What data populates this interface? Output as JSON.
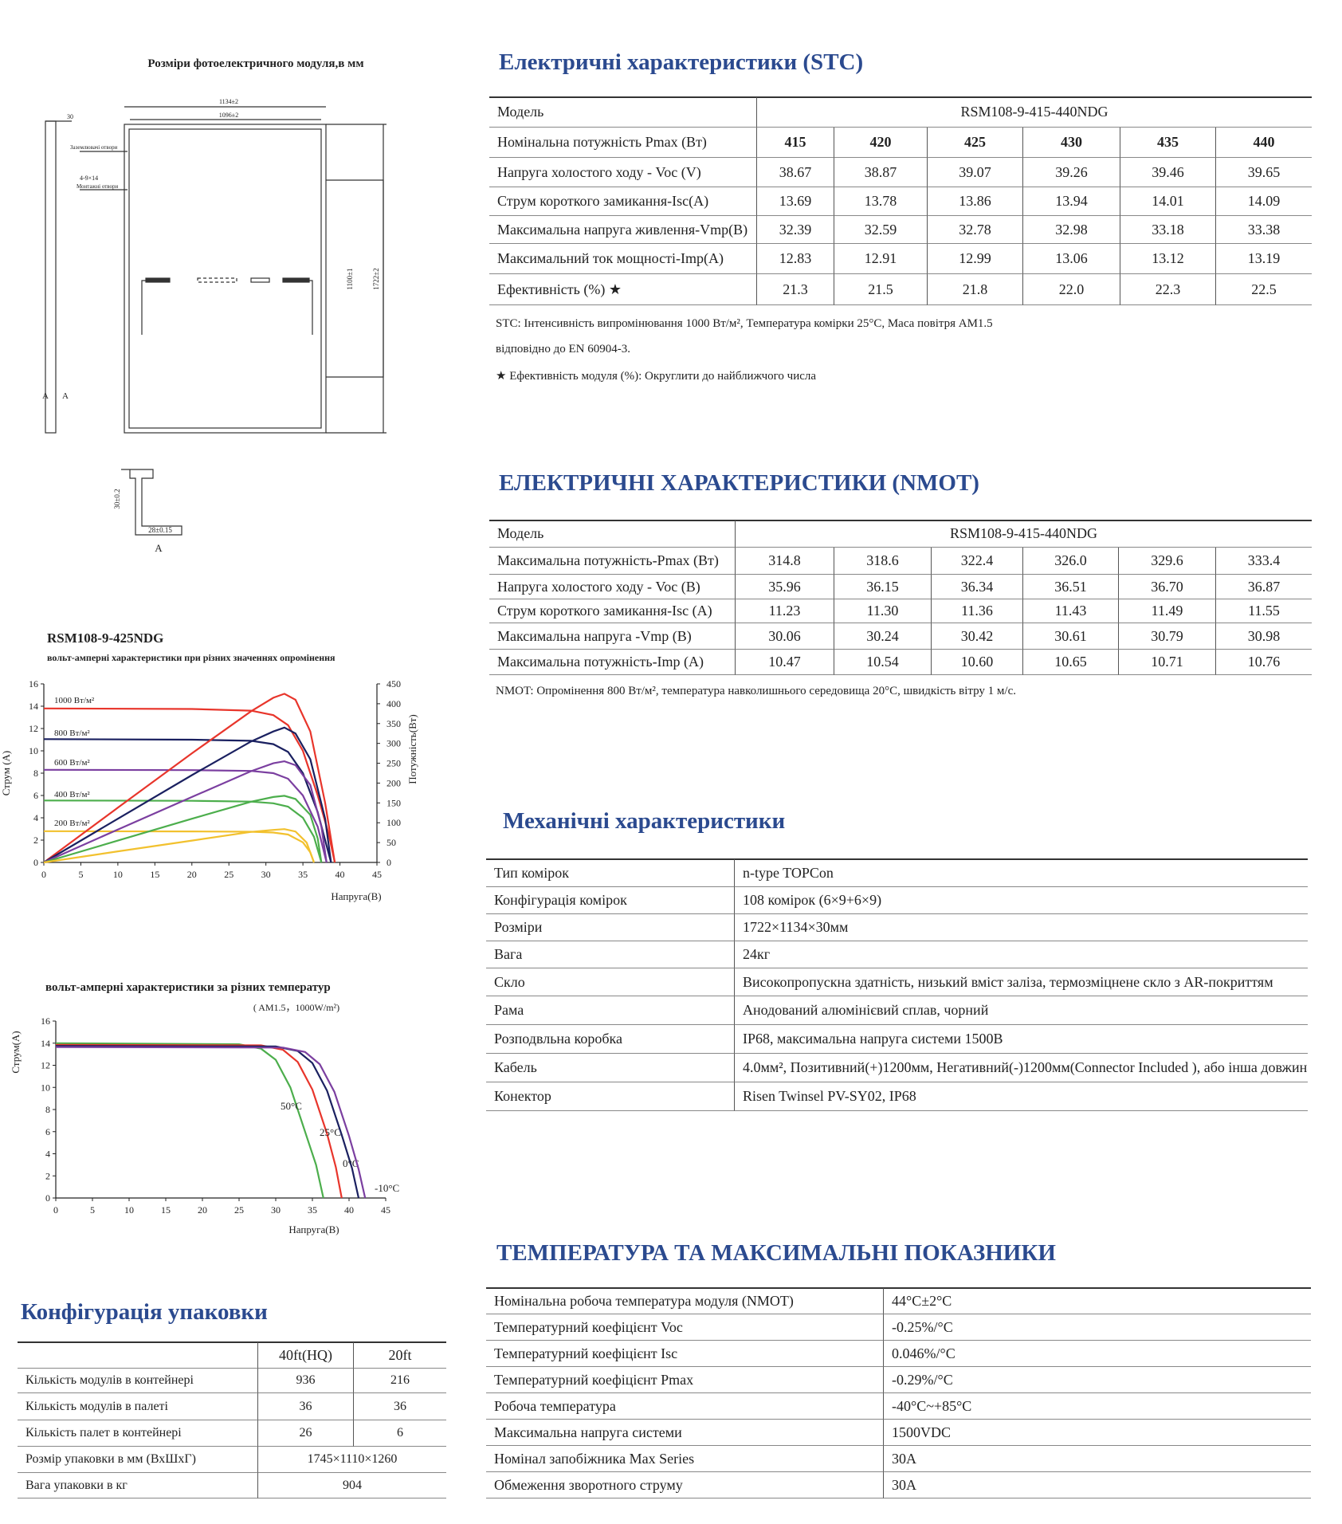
{
  "drawing": {
    "title": "Розміри фотоелектричного модуля,в мм",
    "width_outer": "1134±2",
    "width_inner": "1096±2",
    "thickness": "30",
    "ground_holes": "Заземлювачі отвори",
    "mount_size": "4-9×14",
    "mount_holes": "Монтажні отвори",
    "mount_pitch": "1100±1",
    "length": "1722±2",
    "section_left": "A",
    "section_right": "A",
    "profile_height": "30±0.2",
    "profile_width": "28±0.15",
    "profile_label": "A"
  },
  "stc": {
    "title": "Електричні характеристики  (STC)",
    "header": [
      "Модель",
      "RSM108-9-415-440NDG"
    ],
    "rows": [
      [
        "Номінальна потужність Pmax (Вт)",
        "415",
        "420",
        "425",
        "430",
        "435",
        "440"
      ],
      [
        "Напруга холостого ходу - Voc (V)",
        "38.67",
        "38.87",
        "39.07",
        "39.26",
        "39.46",
        "39.65"
      ],
      [
        "Струм короткого замикання-Isc(A)",
        "13.69",
        "13.78",
        "13.86",
        "13.94",
        "14.01",
        "14.09"
      ],
      [
        "Максимальна напруга живлення-Vmp(B)",
        "32.39",
        "32.59",
        "32.78",
        "32.98",
        "33.18",
        "33.38"
      ],
      [
        "Максимальний ток мощності-Imp(A)",
        "12.83",
        "12.91",
        "12.99",
        "13.06",
        "13.12",
        "13.19"
      ],
      [
        "Ефективність (%) ★",
        "21.3",
        "21.5",
        "21.8",
        "22.0",
        "22.3",
        "22.5"
      ]
    ],
    "notes": [
      "STC: Інтенсивність випромінювання 1000 Вт/м², Температура комірки 25°C, Маса повітря AM1.5",
      "відповідно до EN 60904-3.",
      "★ Ефективність модуля (%): Округлити до найближчого числа"
    ]
  },
  "nmot": {
    "title": "ЕЛЕКТРИЧНІ ХАРАКТЕРИСТИКИ (NMOT)",
    "header": [
      "Модель",
      "RSM108-9-415-440NDG"
    ],
    "rows": [
      [
        "Максимальна потужність-Pmax (Вт)",
        "314.8",
        "318.6",
        "322.4",
        "326.0",
        "329.6",
        "333.4"
      ],
      [
        "Напруга холостого ходу - Voc (В)",
        "35.96",
        "36.15",
        "36.34",
        "36.51",
        "36.70",
        "36.87"
      ],
      [
        "Струм короткого замикання-Isc (А)",
        "11.23",
        "11.30",
        "11.36",
        "11.43",
        "11.49",
        "11.55"
      ],
      [
        "Максимальна напруга -Vmp (В)",
        "30.06",
        "30.24",
        "30.42",
        "30.61",
        "30.79",
        "30.98"
      ],
      [
        "Максимальна потужність-Imp (А)",
        "10.47",
        "10.54",
        "10.60",
        "10.65",
        "10.71",
        "10.76"
      ]
    ],
    "notes": [
      "NMOT: Опромінення 800 Вт/м², температура навколишнього середовища 20°C, швидкість вітру 1 м/с."
    ]
  },
  "mechanical": {
    "title": "Механічні характеристики",
    "rows": [
      [
        "Тип комірок",
        "n-type TOPCon"
      ],
      [
        "Конфігурація комірок",
        "108 комірок (6×9+6×9)"
      ],
      [
        "Розміри",
        "1722×1134×30мм"
      ],
      [
        "Вага",
        "24кг"
      ],
      [
        "Скло",
        "Високопропускна здатність, низький вміст заліза, термозміцнене скло з AR-покриттям"
      ],
      [
        "Рама",
        "Анодований алюмінієвий сплав, чорний"
      ],
      [
        "Розподвльна коробка",
        "IP68, максимальна напруга системи 1500В"
      ],
      [
        "Кабель",
        "4.0мм², Позитивний(+)1200мм, Негативний(-)1200мм(Connector Included ), або інша довжина"
      ],
      [
        "Конектор",
        "Risen Twinsel PV-SY02, IP68"
      ]
    ]
  },
  "temperature": {
    "title": "ТЕМПЕРАТУРА ТА МАКСИМАЛЬНІ ПОКАЗНИКИ",
    "rows": [
      [
        "Номінальна робоча температура модуля (NMOT)",
        "44°C±2°C"
      ],
      [
        "Температурний коефіцієнт Voc",
        "-0.25%/°C"
      ],
      [
        "Температурний коефіцієнт Isc",
        "0.046%/°C"
      ],
      [
        "Температурний коефіцієнт Pmax",
        "-0.29%/°C"
      ],
      [
        "Робоча температура",
        "-40°C~+85°C"
      ],
      [
        "Максимальна напруга системи",
        "1500VDC"
      ],
      [
        "Номінал запобіжника Max Series",
        "30A"
      ],
      [
        "Обмеження зворотного струму",
        "30A"
      ]
    ]
  },
  "packaging": {
    "title": "Конфігурація упаковки",
    "columns": [
      "40ft(HQ)",
      "20ft"
    ],
    "rows": [
      [
        "Кількість модулів в контейнері",
        "936",
        "216"
      ],
      [
        "Кількість модулів в палеті",
        "36",
        "36"
      ],
      [
        "Кількість палет в контейнері",
        "26",
        "6"
      ],
      [
        "Розмір упаковки в мм (ВхШхГ)",
        "1745×1110×1260"
      ],
      [
        "Вага упаковки в кг",
        "904"
      ]
    ]
  },
  "chart_data": [
    {
      "type": "line",
      "title": "RSM108-9-425NDG",
      "subtitle": "вольт-амперні характеристики при різних значеннях опромінення",
      "xlabel": "Напруга(В)",
      "ylabel": "Струм (А)",
      "y2label": "Потужність(Вт)",
      "xlim": [
        0,
        45
      ],
      "ylim": [
        0,
        16
      ],
      "y2lim": [
        0,
        450
      ],
      "xticks": [
        0,
        5,
        10,
        15,
        20,
        25,
        30,
        35,
        40,
        45
      ],
      "yticks": [
        0,
        2,
        4,
        6,
        8,
        10,
        12,
        14,
        16
      ],
      "y2ticks": [
        0,
        50,
        100,
        150,
        200,
        250,
        300,
        350,
        400,
        450
      ],
      "series": [
        {
          "name": "1000 Вт/м²",
          "color": "#e8352b",
          "x": [
            0,
            20,
            28,
            31,
            33,
            35,
            37,
            38.5,
            39.3
          ],
          "values": [
            13.8,
            13.75,
            13.6,
            13.2,
            12.3,
            10,
            6,
            2.5,
            0
          ]
        },
        {
          "name": "800 Вт/м²",
          "color": "#1a2060",
          "x": [
            0,
            20,
            28,
            31,
            33,
            35,
            37,
            38.8
          ],
          "values": [
            11.05,
            11.0,
            10.9,
            10.6,
            9.9,
            8,
            4.5,
            0
          ]
        },
        {
          "name": "600 Вт/м²",
          "color": "#7b3fa0",
          "x": [
            0,
            20,
            28,
            31,
            33,
            35,
            37,
            38.2
          ],
          "values": [
            8.3,
            8.27,
            8.2,
            8.0,
            7.5,
            6.0,
            3.2,
            0
          ]
        },
        {
          "name": "400 Вт/м²",
          "color": "#4cae4c",
          "x": [
            0,
            20,
            28,
            31,
            33,
            35,
            36.5,
            37.5
          ],
          "values": [
            5.55,
            5.52,
            5.45,
            5.3,
            5.0,
            4.0,
            2.3,
            0
          ]
        },
        {
          "name": "200 Вт/м²",
          "color": "#f2c12e",
          "x": [
            0,
            20,
            28,
            31,
            33,
            35,
            36,
            36.5
          ],
          "values": [
            2.8,
            2.78,
            2.75,
            2.68,
            2.5,
            1.8,
            0.9,
            0
          ]
        },
        {
          "axis": "y2",
          "color": "#e8352b",
          "x": [
            0,
            10,
            20,
            28,
            31,
            32.5,
            34,
            36,
            38,
            39.3
          ],
          "values": [
            0,
            138,
            275,
            381,
            415,
            425,
            410,
            330,
            150,
            0
          ]
        },
        {
          "axis": "y2",
          "color": "#1a2060",
          "x": [
            0,
            10,
            20,
            28,
            31,
            32.5,
            34,
            36,
            38,
            38.8
          ],
          "values": [
            0,
            110,
            220,
            305,
            330,
            340,
            325,
            260,
            110,
            0
          ]
        },
        {
          "axis": "y2",
          "color": "#7b3fa0",
          "x": [
            0,
            10,
            20,
            28,
            31,
            32.5,
            34,
            36,
            37.5,
            38.2
          ],
          "values": [
            0,
            83,
            165,
            230,
            250,
            255,
            245,
            195,
            90,
            0
          ]
        },
        {
          "axis": "y2",
          "color": "#4cae4c",
          "x": [
            0,
            10,
            20,
            28,
            31,
            32.5,
            34,
            36,
            37,
            37.5
          ],
          "values": [
            0,
            55,
            110,
            153,
            165,
            168,
            160,
            120,
            60,
            0
          ]
        },
        {
          "axis": "y2",
          "color": "#f2c12e",
          "x": [
            0,
            10,
            20,
            28,
            31,
            32.5,
            34,
            35.5,
            36.5
          ],
          "values": [
            0,
            28,
            55,
            77,
            82,
            84,
            78,
            50,
            0
          ]
        }
      ]
    },
    {
      "type": "line",
      "title": "вольт-амперні характеристики за різних температур",
      "subtitle": "( AM1.5，1000W/m²)",
      "xlabel": "Напруга(В)",
      "ylabel": "Струм(А)",
      "xlim": [
        0,
        45
      ],
      "ylim": [
        0,
        16
      ],
      "xticks": [
        0,
        5,
        10,
        15,
        20,
        25,
        30,
        35,
        40,
        45
      ],
      "yticks": [
        0,
        2,
        4,
        6,
        8,
        10,
        12,
        14,
        16
      ],
      "series": [
        {
          "name": "50°C",
          "color": "#4cae4c",
          "x": [
            0,
            25,
            28,
            30,
            32,
            34,
            35.5,
            36.5
          ],
          "values": [
            14.0,
            13.9,
            13.5,
            12.5,
            10,
            6,
            3,
            0
          ]
        },
        {
          "name": "25°C",
          "color": "#e8352b",
          "x": [
            0,
            28,
            31,
            33,
            35,
            37,
            38.2,
            39
          ],
          "values": [
            13.85,
            13.8,
            13.4,
            12.3,
            9.8,
            5.8,
            2.8,
            0
          ]
        },
        {
          "name": "0°C",
          "color": "#1a2060",
          "x": [
            0,
            30,
            33,
            35,
            37,
            39,
            40.4,
            41.3
          ],
          "values": [
            13.75,
            13.7,
            13.3,
            12.2,
            9.7,
            5.7,
            2.7,
            0
          ]
        },
        {
          "name": "-10°C",
          "color": "#7b3fa0",
          "x": [
            0,
            31,
            34,
            36,
            38,
            40,
            41.3,
            42.2
          ],
          "values": [
            13.65,
            13.6,
            13.2,
            12.1,
            9.6,
            5.6,
            2.6,
            0
          ]
        }
      ]
    }
  ]
}
